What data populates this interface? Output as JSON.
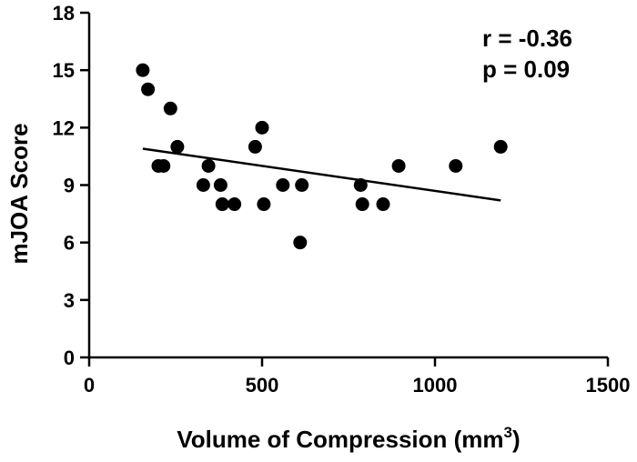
{
  "chart_data": {
    "type": "scatter",
    "title": "",
    "xlabel": "Volume of Compression (mm",
    "xlabel_superscript": "3",
    "xlabel_suffix": ")",
    "ylabel": "mJOA Score",
    "xlim": [
      0,
      1500
    ],
    "ylim": [
      0,
      18
    ],
    "x_ticks": [
      0,
      500,
      1000,
      1500
    ],
    "y_ticks": [
      0,
      3,
      6,
      9,
      12,
      15,
      18
    ],
    "points": [
      {
        "x": 155,
        "y": 15
      },
      {
        "x": 170,
        "y": 14
      },
      {
        "x": 200,
        "y": 10
      },
      {
        "x": 215,
        "y": 10
      },
      {
        "x": 235,
        "y": 13
      },
      {
        "x": 255,
        "y": 11
      },
      {
        "x": 330,
        "y": 9
      },
      {
        "x": 345,
        "y": 10
      },
      {
        "x": 380,
        "y": 9
      },
      {
        "x": 385,
        "y": 8
      },
      {
        "x": 420,
        "y": 8
      },
      {
        "x": 480,
        "y": 11
      },
      {
        "x": 500,
        "y": 12
      },
      {
        "x": 505,
        "y": 8
      },
      {
        "x": 560,
        "y": 9
      },
      {
        "x": 610,
        "y": 6
      },
      {
        "x": 615,
        "y": 9
      },
      {
        "x": 785,
        "y": 9
      },
      {
        "x": 790,
        "y": 8
      },
      {
        "x": 850,
        "y": 8
      },
      {
        "x": 895,
        "y": 10
      },
      {
        "x": 1060,
        "y": 10
      },
      {
        "x": 1190,
        "y": 11
      }
    ],
    "fit_line": {
      "x": [
        155,
        1190
      ],
      "y": [
        10.9,
        8.2
      ]
    },
    "annotations": {
      "r": "r = -0.36",
      "p": "p = 0.09"
    },
    "grid": false
  }
}
